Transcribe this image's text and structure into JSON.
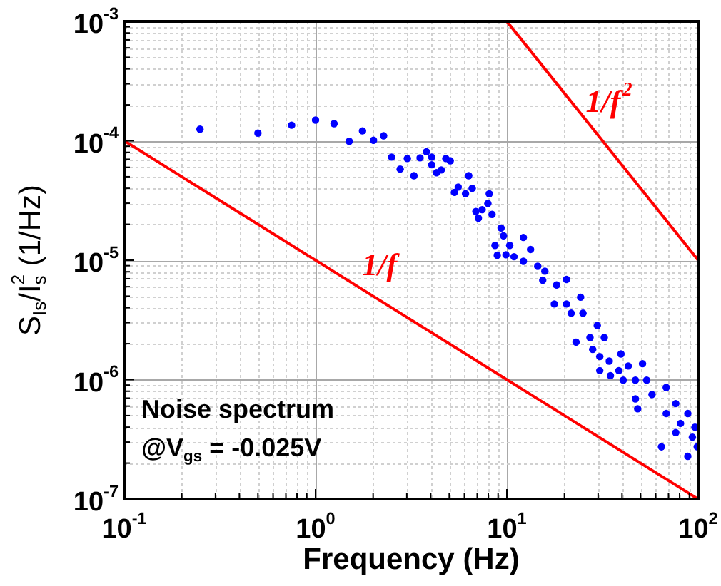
{
  "chart_data": {
    "type": "scatter",
    "xlabel": "Frequency (Hz)",
    "ylabel": "S$_{Is}$/I$^{2}$$_{s}$ (1/Hz)",
    "log": "xy",
    "grid": true,
    "xlim": [
      0.1,
      100
    ],
    "ylim": [
      1e-07,
      0.001
    ],
    "xticks": [
      {
        "value": 0.1,
        "label": "10$^{-1}$"
      },
      {
        "value": 0.2,
        "label": null
      },
      {
        "value": 0.3,
        "label": null
      },
      {
        "value": 0.4,
        "label": null
      },
      {
        "value": 0.5,
        "label": null
      },
      {
        "value": 0.6,
        "label": null
      },
      {
        "value": 0.7,
        "label": null
      },
      {
        "value": 0.8,
        "label": null
      },
      {
        "value": 0.9,
        "label": null
      },
      {
        "value": 1,
        "label": "10$^{0}$"
      },
      {
        "value": 2,
        "label": null
      },
      {
        "value": 3,
        "label": null
      },
      {
        "value": 4,
        "label": null
      },
      {
        "value": 5,
        "label": null
      },
      {
        "value": 6,
        "label": null
      },
      {
        "value": 7,
        "label": null
      },
      {
        "value": 8,
        "label": null
      },
      {
        "value": 9,
        "label": null
      },
      {
        "value": 10,
        "label": "10$^{1}$"
      },
      {
        "value": 20,
        "label": null
      },
      {
        "value": 30,
        "label": null
      },
      {
        "value": 40,
        "label": null
      },
      {
        "value": 50,
        "label": null
      },
      {
        "value": 60,
        "label": null
      },
      {
        "value": 70,
        "label": null
      },
      {
        "value": 80,
        "label": null
      },
      {
        "value": 90,
        "label": null
      },
      {
        "value": 100,
        "label": "10$^{2}$"
      }
    ],
    "yticks": [
      {
        "value": 1e-07,
        "label": "10$^{-7}$"
      },
      {
        "value": 2e-07,
        "label": null
      },
      {
        "value": 3e-07,
        "label": null
      },
      {
        "value": 4e-07,
        "label": null
      },
      {
        "value": 5e-07,
        "label": null
      },
      {
        "value": 6e-07,
        "label": null
      },
      {
        "value": 7e-07,
        "label": null
      },
      {
        "value": 8e-07,
        "label": null
      },
      {
        "value": 9e-07,
        "label": null
      },
      {
        "value": 1e-06,
        "label": "10$^{-6}$"
      },
      {
        "value": 2e-06,
        "label": null
      },
      {
        "value": 3e-06,
        "label": null
      },
      {
        "value": 4e-06,
        "label": null
      },
      {
        "value": 5e-06,
        "label": null
      },
      {
        "value": 6e-06,
        "label": null
      },
      {
        "value": 7e-06,
        "label": null
      },
      {
        "value": 8e-06,
        "label": null
      },
      {
        "value": 9e-06,
        "label": null
      },
      {
        "value": 1e-05,
        "label": "10$^{-5}$"
      },
      {
        "value": 2e-05,
        "label": null
      },
      {
        "value": 3e-05,
        "label": null
      },
      {
        "value": 4e-05,
        "label": null
      },
      {
        "value": 5e-05,
        "label": null
      },
      {
        "value": 6e-05,
        "label": null
      },
      {
        "value": 7e-05,
        "label": null
      },
      {
        "value": 8e-05,
        "label": null
      },
      {
        "value": 9e-05,
        "label": null
      },
      {
        "value": 0.0001,
        "label": "10$^{-4}$"
      },
      {
        "value": 0.0002,
        "label": null
      },
      {
        "value": 0.0003,
        "label": null
      },
      {
        "value": 0.0004,
        "label": null
      },
      {
        "value": 0.0005,
        "label": null
      },
      {
        "value": 0.0006,
        "label": null
      },
      {
        "value": 0.0007,
        "label": null
      },
      {
        "value": 0.0008,
        "label": null
      },
      {
        "value": 0.0009,
        "label": null
      },
      {
        "value": 0.001,
        "label": "10$^{-3}$"
      }
    ],
    "annotations": [
      "Noise spectrum",
      "@V$_{gs}$ = -0.025V"
    ],
    "series": [
      {
        "type": "scatter",
        "marker": "circle",
        "color": "#0000ff",
        "x": [
          0.249,
          0.5,
          0.75,
          1.0,
          1.25,
          1.5,
          1.76,
          2.01,
          2.27,
          2.5,
          2.77,
          3.02,
          3.27,
          3.52,
          3.8,
          4.05,
          4.05,
          4.29,
          4.54,
          4.8,
          5.06,
          5.32,
          5.57,
          6.08,
          6.32,
          6.59,
          6.89,
          7.1,
          7.43,
          7.96,
          8.09,
          8.37,
          8.67,
          8.91,
          9.33,
          9.61,
          9.89,
          10.35,
          10.9,
          12.2,
          13.3,
          12.2,
          14.5,
          15.8,
          15.4,
          18.2,
          20.5,
          17.7,
          20.5,
          24.3,
          21.7,
          25,
          23,
          27.2,
          29.7,
          32.3,
          28.1,
          30.6,
          34.3,
          39.5,
          30.6,
          38.5,
          43.1,
          51.2,
          47,
          34.8,
          53.8,
          40.6,
          47,
          48.3,
          57.4,
          68.1,
          64.3,
          68.1,
          76.4,
          80.9,
          88.3,
          93.3,
          96.2,
          88.3,
          98.9,
          76.4
        ],
        "values": [
          0.000125,
          0.000116,
          0.000135,
          0.000149,
          0.000139,
          9.9e-05,
          0.000121,
          0.000101,
          0.00011,
          7.3e-05,
          5.8e-05,
          7.1e-05,
          5.1e-05,
          7.2e-05,
          8.1e-05,
          7.3e-05,
          6.3e-05,
          5.4e-05,
          5.7e-05,
          7.1e-05,
          6.8e-05,
          3.7e-05,
          4.1e-05,
          3.6e-05,
          5.1e-05,
          4e-05,
          2.56e-05,
          2.25e-05,
          2.65e-05,
          2.99e-05,
          3.6e-05,
          2.42e-05,
          1.33e-05,
          1.1e-05,
          1.86e-05,
          1.6e-05,
          1.11e-05,
          1.33e-05,
          1.07e-05,
          1.55e-05,
          1.23e-05,
          9.8e-06,
          8.9e-06,
          8.1e-06,
          6.8e-06,
          6.2e-06,
          6.9e-06,
          4.3e-06,
          4.3e-06,
          4.9e-06,
          3.6e-06,
          3.6e-06,
          2.06e-06,
          2.25e-06,
          2.84e-06,
          2.25e-06,
          1.79e-06,
          1.56e-06,
          1.43e-06,
          1.64e-06,
          1.19e-06,
          1.19e-06,
          1.3e-06,
          1.36e-06,
          9.9e-07,
          1.08e-06,
          9.9e-07,
          9.9e-07,
          6.9e-07,
          5.7e-07,
          7.5e-07,
          8.6e-07,
          2.74e-07,
          5.2e-07,
          6.3e-07,
          4.3e-07,
          5.2e-07,
          3.3e-07,
          4e-07,
          2.28e-07,
          2.74e-07,
          3.6e-07
        ]
      },
      {
        "type": "line",
        "marker": "none",
        "name": "1/f",
        "color": "#ff0000",
        "x": [
          0.1,
          100
        ],
        "values": [
          0.0001,
          1e-07
        ]
      },
      {
        "type": "line",
        "marker": "none",
        "name": "1/f$^{2}$",
        "color": "#ff0000",
        "x": [
          10,
          100
        ],
        "values": [
          0.001,
          1e-05
        ]
      }
    ]
  }
}
